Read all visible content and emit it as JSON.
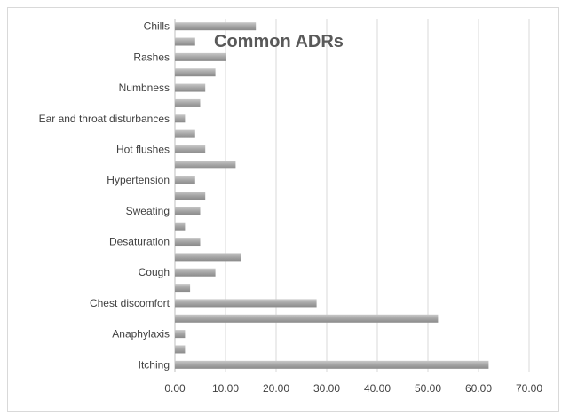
{
  "chart_data": {
    "type": "bar",
    "orientation": "horizontal",
    "title": "Common ADRs",
    "categories": [
      "Chills",
      "",
      "Rashes",
      "",
      "Numbness",
      "",
      "Ear and throat disturbances",
      "",
      "Hot flushes",
      "",
      "Hypertension",
      "",
      "Sweating",
      "",
      "Desaturation",
      "",
      "Cough",
      "",
      "Chest discomfort",
      "",
      "Anaphylaxis",
      "",
      "Itching"
    ],
    "values": [
      16,
      4,
      10,
      8,
      6,
      5,
      2,
      4,
      6,
      12,
      4,
      6,
      5,
      2,
      5,
      13,
      8,
      3,
      28,
      52,
      2,
      2,
      62
    ],
    "xlim": [
      0,
      70
    ],
    "xticks": [
      "0.00",
      "10.00",
      "20.00",
      "30.00",
      "40.00",
      "50.00",
      "60.00",
      "70.00"
    ],
    "grid": true,
    "bar_color": "#a5a5a5",
    "grid_color": "#d9d9d9",
    "axis_color": "#bfbfbf"
  }
}
